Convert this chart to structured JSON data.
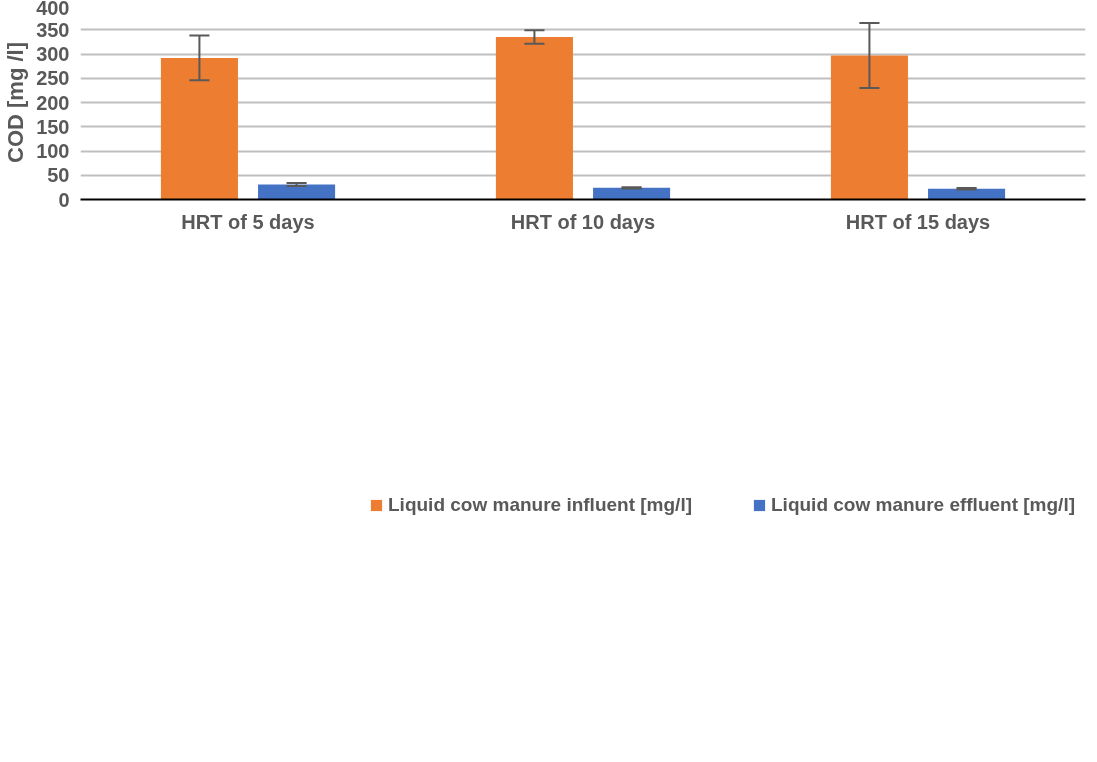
{
  "chart_data": {
    "type": "bar",
    "ylabel": "COD [mg /l]",
    "categories": [
      "HRT of 5 days",
      "HRT of 10 days",
      "HRT of 15 days"
    ],
    "series": [
      {
        "name": "Liquid cow manure influent [mg/l]",
        "color": "#ed7d31",
        "values": [
          292,
          335,
          297
        ],
        "errors": [
          46,
          14,
          67
        ]
      },
      {
        "name": "Liquid cow manure effluent [mg/l]",
        "color": "#4472c4",
        "values": [
          31,
          24,
          22
        ],
        "errors": [
          3,
          1.5,
          1.5
        ]
      }
    ],
    "ylim": [
      0,
      400
    ],
    "yticks": [
      0,
      50,
      100,
      150,
      200,
      250,
      300,
      350,
      400
    ],
    "grid": "y",
    "legend": "bottom"
  }
}
